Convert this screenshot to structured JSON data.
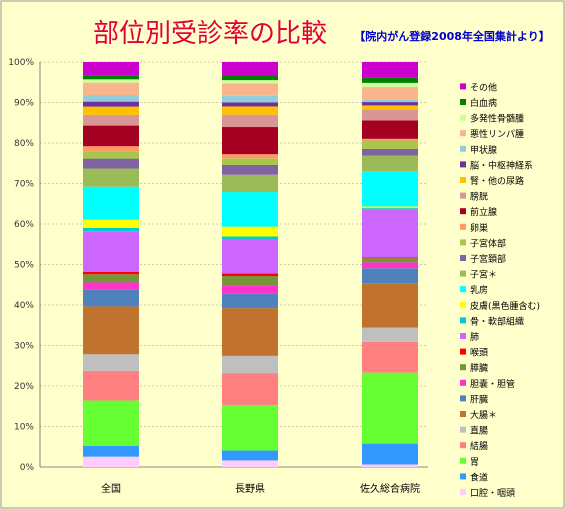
{
  "chart_data": {
    "type": "stacked-bar-100",
    "title": "部位別受診率の比較",
    "subtitle": "【院内がん登録2008年全国集計より】",
    "categories": [
      "全国",
      "長野県",
      "佐久総合病院"
    ],
    "y_ticks": [
      "0%",
      "10%",
      "20%",
      "30%",
      "40%",
      "50%",
      "60%",
      "70%",
      "80%",
      "90%",
      "100%"
    ],
    "ylim": [
      0,
      100
    ],
    "grid": true,
    "legend_position": "right",
    "series": [
      {
        "name": "口腔・咽頭",
        "color": "#ffccff",
        "values": [
          2.5,
          1.6,
          0.6
        ]
      },
      {
        "name": "食道",
        "color": "#3399ff",
        "values": [
          2.6,
          2.4,
          5.0
        ]
      },
      {
        "name": "胃",
        "color": "#66ff33",
        "values": [
          11.0,
          11.0,
          17.0
        ]
      },
      {
        "name": "結腸",
        "color": "#ff8080",
        "values": [
          7.2,
          7.8,
          7.4
        ]
      },
      {
        "name": "直腸",
        "color": "#bfbfbf",
        "values": [
          4.0,
          4.2,
          3.4
        ]
      },
      {
        "name": "大腸＊",
        "color": "#c0722e",
        "values": [
          11.6,
          11.6,
          10.6
        ]
      },
      {
        "name": "肝臓",
        "color": "#4f81bd",
        "values": [
          4.0,
          3.6,
          3.6
        ]
      },
      {
        "name": "胆嚢・胆管",
        "color": "#ff33cc",
        "values": [
          1.8,
          1.8,
          1.4
        ]
      },
      {
        "name": "膵臓",
        "color": "#77933c",
        "values": [
          2.0,
          2.4,
          1.0
        ]
      },
      {
        "name": "喉頭",
        "color": "#ff0000",
        "values": [
          0.6,
          0.6,
          0.2
        ]
      },
      {
        "name": "肺",
        "color": "#cc66ff",
        "values": [
          9.8,
          8.4,
          11.4
        ]
      },
      {
        "name": "骨・軟部組織",
        "color": "#00cccc",
        "values": [
          0.8,
          0.6,
          0.4
        ]
      },
      {
        "name": "皮膚(黒色腫含む)",
        "color": "#ffff00",
        "values": [
          2.0,
          2.4,
          0.4
        ]
      },
      {
        "name": "乳房",
        "color": "#00ffff",
        "values": [
          8.0,
          8.4,
          8.4
        ]
      },
      {
        "name": "子宮＊",
        "color": "#9bbb59",
        "values": [
          4.4,
          4.2,
          3.8
        ]
      },
      {
        "name": "子宮頚部",
        "color": "#8064a2",
        "values": [
          2.4,
          2.4,
          1.6
        ]
      },
      {
        "name": "子宮体部",
        "color": "#a6c64c",
        "values": [
          1.8,
          1.6,
          2.0
        ]
      },
      {
        "name": "卵巣",
        "color": "#ff9966",
        "values": [
          1.2,
          1.0,
          0.4
        ]
      },
      {
        "name": "前立腺",
        "color": "#a50021",
        "values": [
          5.0,
          6.6,
          4.4
        ]
      },
      {
        "name": "膀胱",
        "color": "#d99694",
        "values": [
          2.6,
          3.0,
          2.6
        ]
      },
      {
        "name": "腎・他の尿路",
        "color": "#ffc000",
        "values": [
          2.0,
          2.0,
          1.0
        ]
      },
      {
        "name": "脳・中枢神経系",
        "color": "#7030a0",
        "values": [
          1.2,
          1.0,
          0.8
        ]
      },
      {
        "name": "甲状腺",
        "color": "#93cddd",
        "values": [
          1.6,
          1.6,
          0.6
        ]
      },
      {
        "name": "悪性リンパ腫",
        "color": "#fab58d",
        "values": [
          3.0,
          3.0,
          3.0
        ]
      },
      {
        "name": "多発性骨髄腫",
        "color": "#ccff99",
        "values": [
          0.8,
          0.8,
          1.0
        ]
      },
      {
        "name": "白血病",
        "color": "#008000",
        "values": [
          1.0,
          1.0,
          1.2
        ]
      },
      {
        "name": "その他",
        "color": "#cc00cc",
        "values": [
          3.2,
          3.4,
          3.8
        ]
      }
    ]
  }
}
